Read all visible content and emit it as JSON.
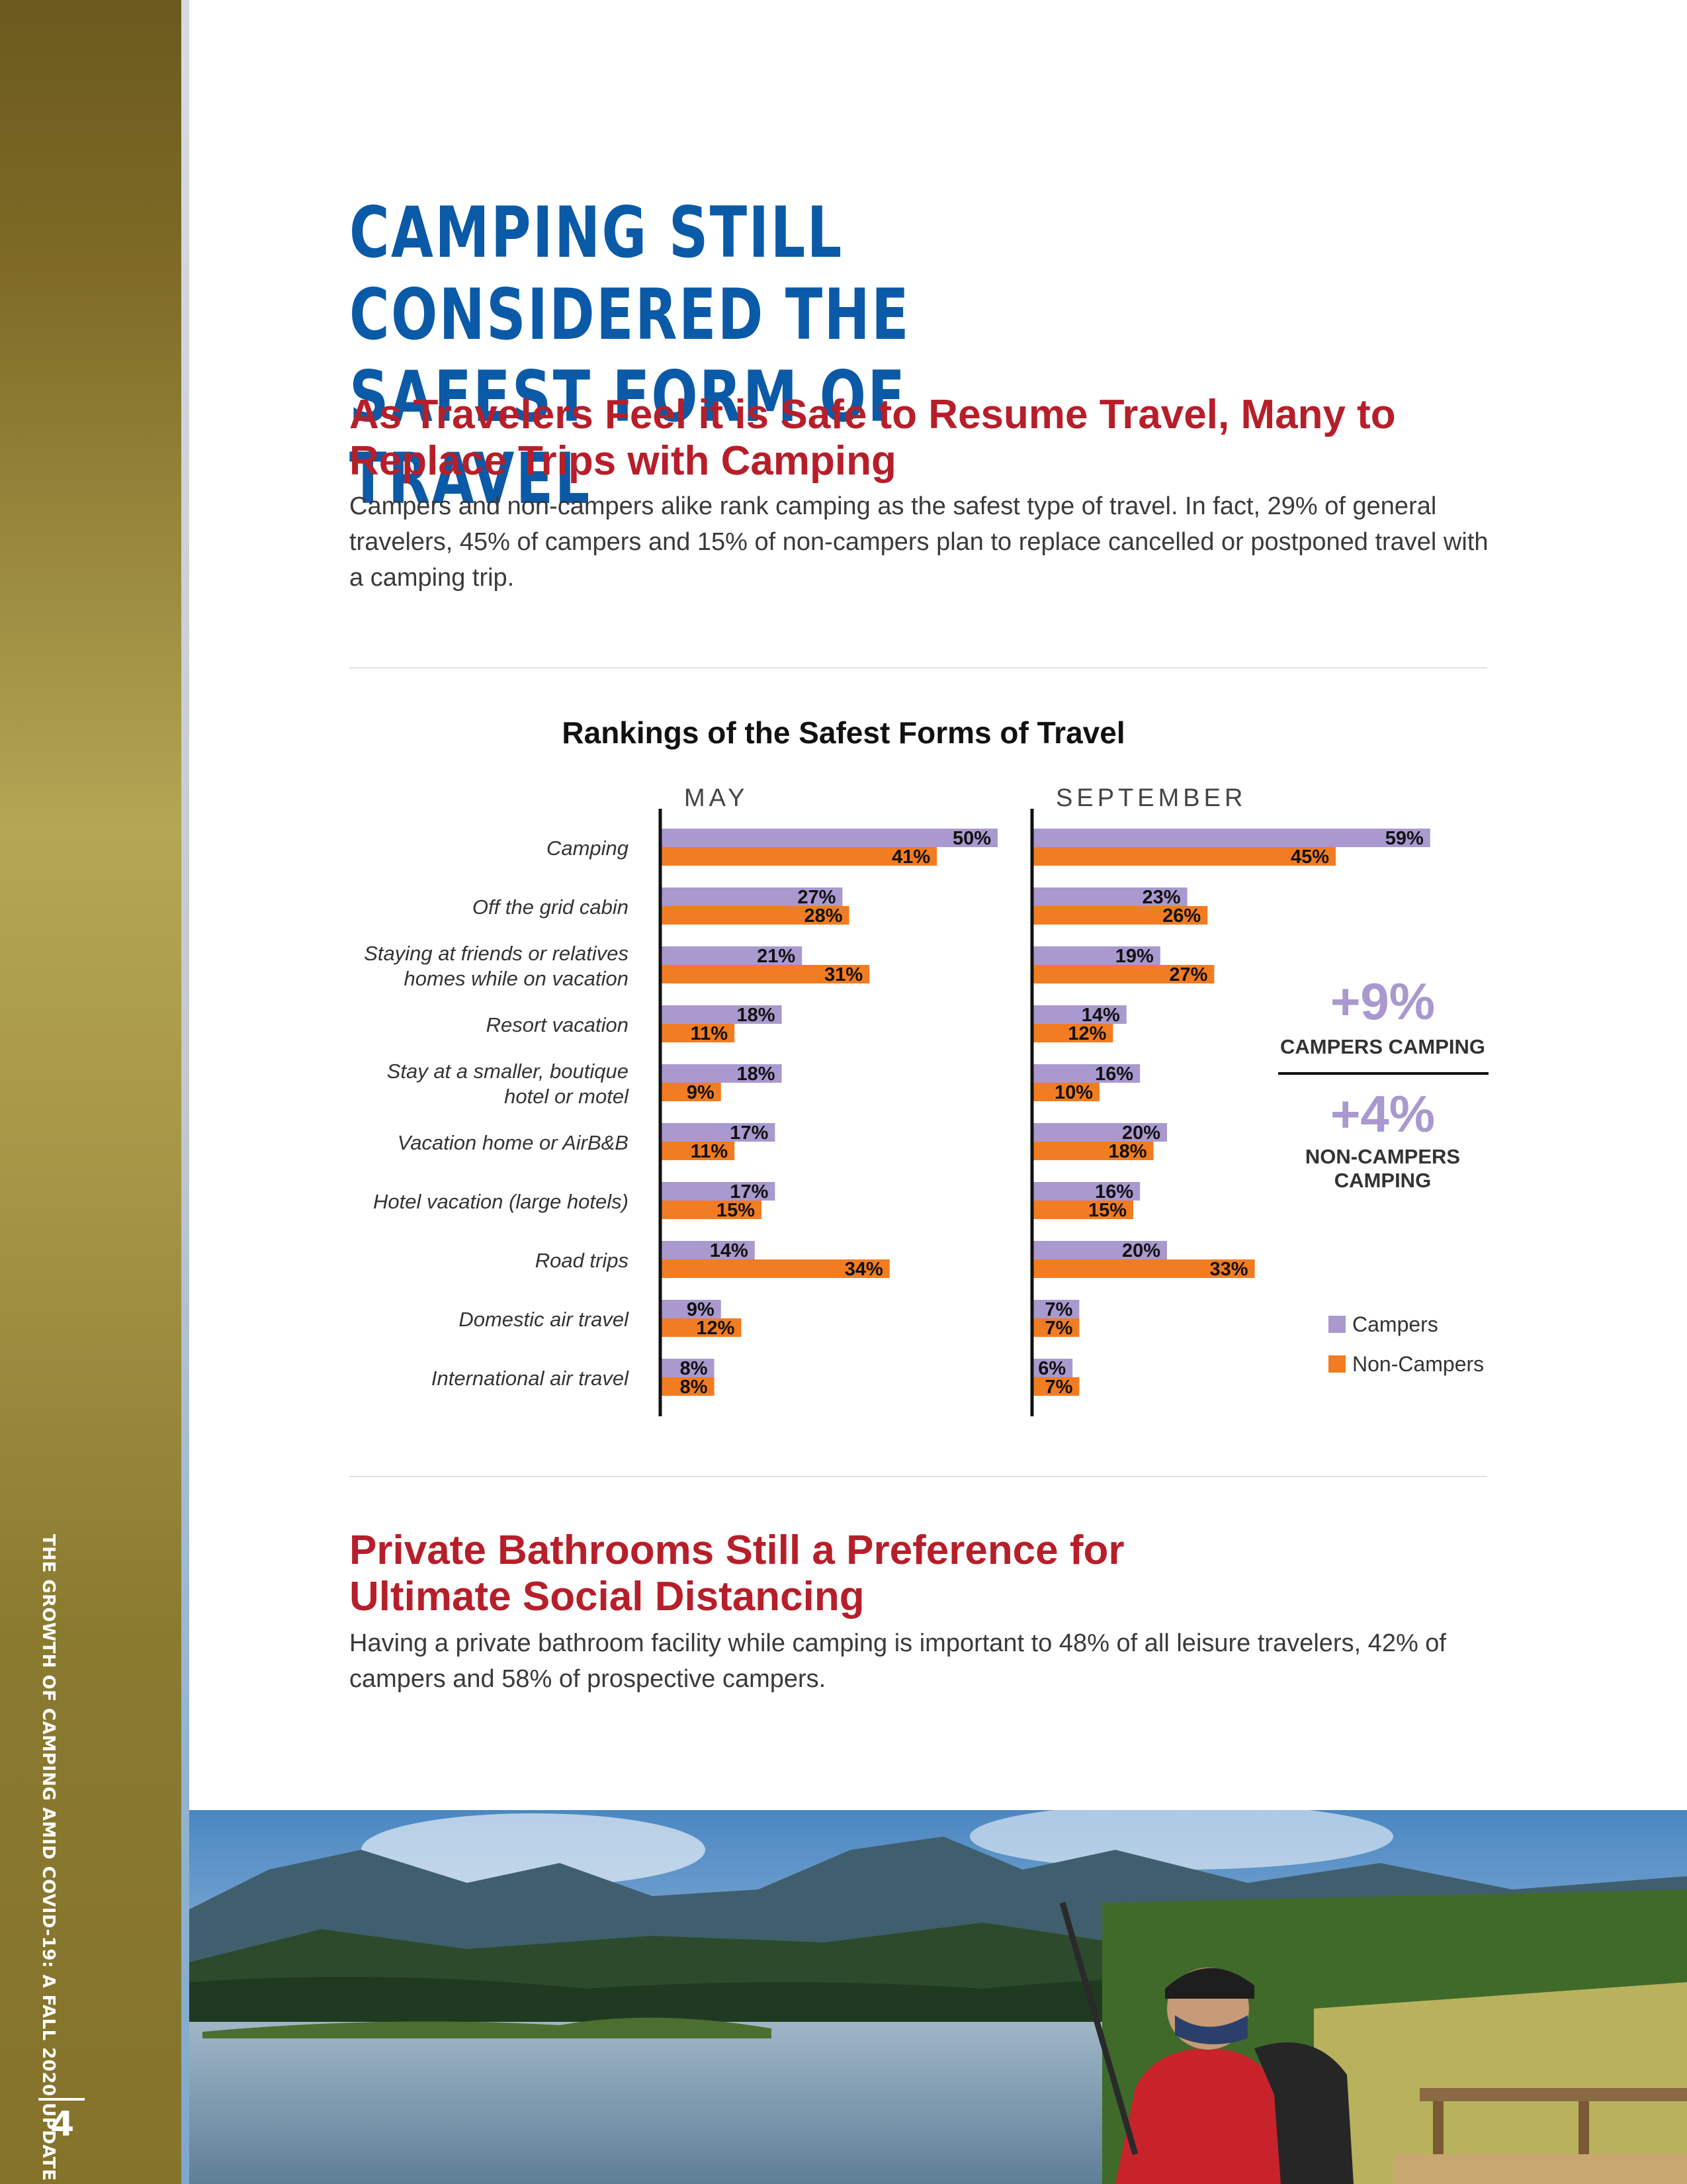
{
  "sidebar": {
    "running_title": "THE GROWTH OF CAMPING AMID COVID-19: A FALL 2020 UPDATE",
    "page_number": "4"
  },
  "page": {
    "title": "CAMPING STILL CONSIDERED THE SAFEST FORM OF TRAVEL",
    "section1": {
      "heading": "As Travelers Feel it is Safe to Resume Travel, Many to Replace Trips with Camping",
      "body": "Campers and non-campers alike rank camping as the safest type of travel. In fact, 29% of general travelers, 45% of campers and 15% of non-campers plan to replace cancelled or postponed travel with a camping trip."
    },
    "section2": {
      "heading": "Private Bathrooms Still a Preference for Ultimate Social Distancing",
      "body": "Having a private bathroom facility while camping is important to 48% of all leisure travelers, 42% of campers and 58% of prospective campers."
    }
  },
  "colors": {
    "title_blue": "#0a5aa8",
    "heading_red": "#b61f2a",
    "campers": "#a999cf",
    "non_campers": "#f27c22",
    "callout": "#a999cf"
  },
  "chart_data": {
    "type": "bar",
    "orientation": "horizontal",
    "title": "Rankings of the Safest Forms of Travel",
    "categories": [
      [
        "Camping"
      ],
      [
        "Off the grid cabin"
      ],
      [
        "Staying at friends or relatives",
        "homes while on vacation"
      ],
      [
        "Resort vacation"
      ],
      [
        "Stay at a smaller, boutique",
        "hotel or motel"
      ],
      [
        "Vacation home or AirB&B"
      ],
      [
        "Hotel vacation (large hotels)"
      ],
      [
        "Road trips"
      ],
      [
        "Domestic air travel"
      ],
      [
        "International air travel"
      ]
    ],
    "panels": [
      {
        "label": "MAY",
        "series": [
          {
            "name": "Campers",
            "values": [
              50,
              27,
              21,
              18,
              18,
              17,
              17,
              14,
              9,
              8
            ]
          },
          {
            "name": "Non-Campers",
            "values": [
              41,
              28,
              31,
              11,
              9,
              11,
              15,
              34,
              12,
              8
            ]
          }
        ]
      },
      {
        "label": "SEPTEMBER",
        "series": [
          {
            "name": "Campers",
            "values": [
              59,
              23,
              19,
              14,
              16,
              20,
              16,
              20,
              7,
              6
            ]
          },
          {
            "name": "Non-Campers",
            "values": [
              45,
              26,
              27,
              12,
              10,
              18,
              15,
              33,
              7,
              7
            ]
          }
        ]
      }
    ],
    "value_suffix": "%",
    "legend": [
      "Campers",
      "Non-Campers"
    ],
    "legend_position": "bottom-right",
    "callouts": [
      {
        "value": "+9%",
        "lines": [
          "CAMPERS CAMPING"
        ]
      },
      {
        "value": "+4%",
        "lines": [
          "NON-CAMPERS",
          "CAMPING"
        ]
      }
    ]
  }
}
